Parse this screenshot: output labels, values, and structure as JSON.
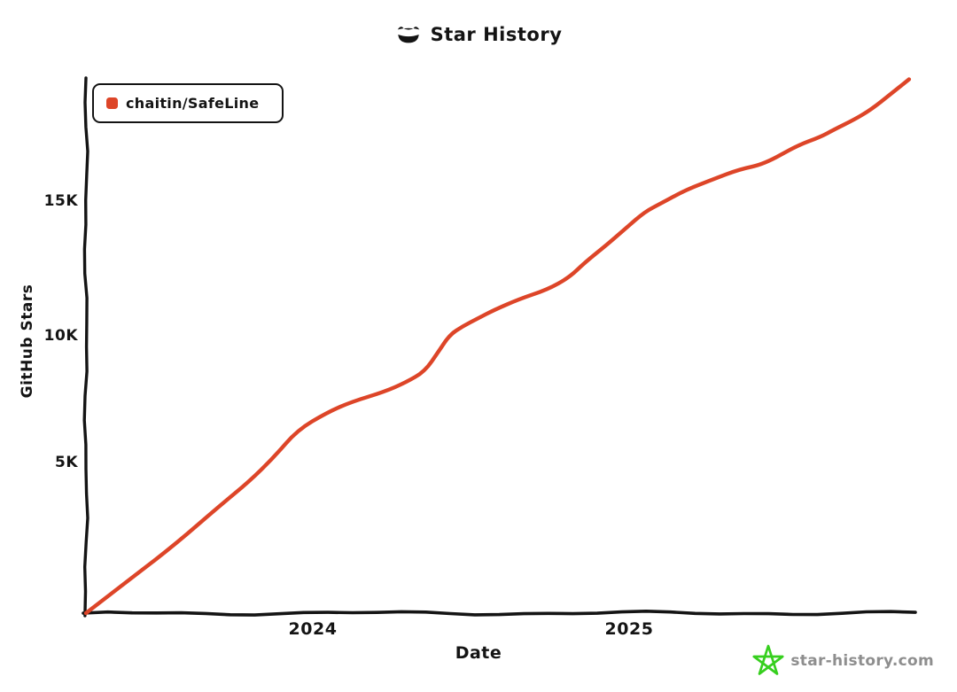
{
  "title": {
    "text": "Star History"
  },
  "legend": {
    "items": [
      {
        "label": "chaitin/SafeLine",
        "color": "#dd4528"
      }
    ]
  },
  "axes": {
    "y_label": "GitHub Stars",
    "x_label": "Date",
    "y_ticks": [
      "5K",
      "10K",
      "15K"
    ],
    "x_ticks": [
      "2024",
      "2025"
    ]
  },
  "watermark": {
    "text": "star-history.com",
    "icon_color": "#36cf1e"
  },
  "colors": {
    "axis": "#141414",
    "text": "#141414",
    "watermark_text": "#8e8e8e"
  },
  "chart_data": {
    "type": "line",
    "title": "Star History",
    "xlabel": "Date",
    "ylabel": "GitHub Stars",
    "x_range": [
      2023.283,
      2025.92
    ],
    "y_range": [
      0,
      19600
    ],
    "x_tick_values": [
      2024,
      2025
    ],
    "y_tick_values": [
      5000,
      10000,
      15000
    ],
    "grid": false,
    "legend_position": "top-left",
    "series": [
      {
        "name": "chaitin/SafeLine",
        "color": "#dd4528",
        "points": [
          {
            "date": "2023-04",
            "x": 2023.283,
            "stars": 0
          },
          {
            "date": "2023-06",
            "x": 2023.43,
            "stars": 1300
          },
          {
            "date": "2023-07",
            "x": 2023.57,
            "stars": 2550
          },
          {
            "date": "2023-09",
            "x": 2023.71,
            "stars": 3950
          },
          {
            "date": "2023-10",
            "x": 2023.8,
            "stars": 4800
          },
          {
            "date": "2023-11",
            "x": 2023.88,
            "stars": 5700
          },
          {
            "date": "2023-12",
            "x": 2023.955,
            "stars": 6700
          },
          {
            "date": "2024-01",
            "x": 2024.05,
            "stars": 7350
          },
          {
            "date": "2024-02",
            "x": 2024.13,
            "stars": 7750
          },
          {
            "date": "2024-03",
            "x": 2024.23,
            "stars": 8100
          },
          {
            "date": "2024-04",
            "x": 2024.3,
            "stars": 8450
          },
          {
            "date": "2024-05",
            "x": 2024.36,
            "stars": 8850
          },
          {
            "date": "2024-05",
            "x": 2024.405,
            "stars": 9600
          },
          {
            "date": "2024-06",
            "x": 2024.44,
            "stars": 10200
          },
          {
            "date": "2024-06",
            "x": 2024.48,
            "stars": 10500
          },
          {
            "date": "2024-07",
            "x": 2024.53,
            "stars": 10800
          },
          {
            "date": "2024-08",
            "x": 2024.58,
            "stars": 11100
          },
          {
            "date": "2024-09",
            "x": 2024.66,
            "stars": 11500
          },
          {
            "date": "2024-10",
            "x": 2024.75,
            "stars": 11850
          },
          {
            "date": "2024-11",
            "x": 2024.82,
            "stars": 12300
          },
          {
            "date": "2024-11",
            "x": 2024.87,
            "stars": 12850
          },
          {
            "date": "2024-12",
            "x": 2024.94,
            "stars": 13500
          },
          {
            "date": "2025-01",
            "x": 2025.0,
            "stars": 14100
          },
          {
            "date": "2025-01",
            "x": 2025.06,
            "stars": 14700
          },
          {
            "date": "2025-02",
            "x": 2025.11,
            "stars": 15000
          },
          {
            "date": "2025-03",
            "x": 2025.19,
            "stars": 15500
          },
          {
            "date": "2025-04",
            "x": 2025.28,
            "stars": 15900
          },
          {
            "date": "2025-05",
            "x": 2025.36,
            "stars": 16250
          },
          {
            "date": "2025-06",
            "x": 2025.44,
            "stars": 16450
          },
          {
            "date": "2025-07",
            "x": 2025.54,
            "stars": 17100
          },
          {
            "date": "2025-08",
            "x": 2025.62,
            "stars": 17450
          },
          {
            "date": "2025-09",
            "x": 2025.66,
            "stars": 17700
          },
          {
            "date": "2025-09",
            "x": 2025.73,
            "stars": 18100
          },
          {
            "date": "2025-10",
            "x": 2025.78,
            "stars": 18450
          },
          {
            "date": "2025-11",
            "x": 2025.84,
            "stars": 19000
          },
          {
            "date": "2025-11",
            "x": 2025.9,
            "stars": 19550
          }
        ]
      }
    ]
  }
}
